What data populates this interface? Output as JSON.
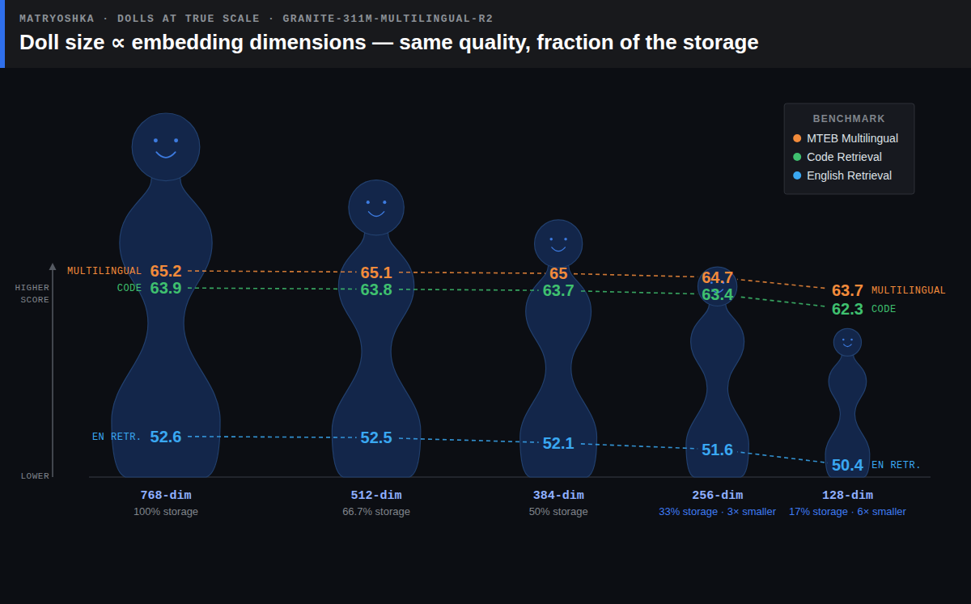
{
  "chart_data": {
    "type": "line",
    "supertitle": "MATRYOSHKA · DOLLS AT TRUE SCALE · GRANITE-311M-MULTILINGUAL-R2",
    "title": "Doll size ∝ embedding dimensions — same quality, fraction of the storage",
    "categories": [
      "768-dim",
      "512-dim",
      "384-dim",
      "256-dim",
      "128-dim"
    ],
    "dimensions": [
      768,
      512,
      384,
      256,
      128
    ],
    "storage_labels": [
      "100% storage",
      "66.7% storage",
      "50% storage",
      "33% storage · 3× smaller",
      "17% storage · 6× smaller"
    ],
    "y_label_top": "HIGHER SCORE",
    "y_label_bottom": "LOWER",
    "legend_title": "BENCHMARK",
    "series": [
      {
        "name": "MTEB Multilingual",
        "label": "MULTILINGUAL",
        "color": "#f28b3b",
        "line_style": "dashed",
        "values": [
          65.2,
          65.1,
          65.0,
          64.7,
          63.7
        ]
      },
      {
        "name": "Code Retrieval",
        "label": "CODE",
        "color": "#3fc06f",
        "line_style": "dashed",
        "values": [
          63.9,
          63.8,
          63.7,
          63.4,
          62.3
        ]
      },
      {
        "name": "English Retrieval",
        "label": "EN RETR.",
        "color": "#3aa8f2",
        "line_style": "dashed",
        "values": [
          52.6,
          52.5,
          52.1,
          51.6,
          50.4
        ]
      }
    ],
    "ylim": [
      49.5,
      65.5
    ],
    "tick_labels": false,
    "grid": false,
    "legend": "top-right",
    "data_labels": true
  }
}
